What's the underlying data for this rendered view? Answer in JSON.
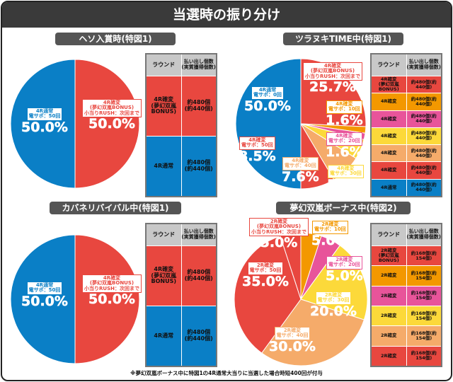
{
  "title": "当選時の振り分け",
  "colors": {
    "red": "#e8473f",
    "blue": "#0a7fc6",
    "orange": "#f39800",
    "pink": "#e8549a",
    "yellow": "#fcd93a",
    "salmon": "#f5ab6a"
  },
  "table_header": {
    "round": "ラウンド",
    "payout": "払い出し個数\n(実質獲得個数)"
  },
  "panels": [
    {
      "title": "ヘソ入賞時(特図1)",
      "slices": [
        {
          "label": "4R確変\n(夢幻双嵐BONUS)\n小当りRUSH：次回まで",
          "pct": "50.0%",
          "value": 50.0,
          "color": "red"
        },
        {
          "label": "4R通常\n電サポ：50回",
          "pct": "50.0%",
          "value": 50.0,
          "color": "blue"
        }
      ],
      "rows": [
        {
          "round": "4R確変\n(夢幻双嵐BONUS)",
          "payout": "約480個\n(約440個)",
          "color": "red"
        },
        {
          "round": "4R通常",
          "payout": "約480個\n(約440個)",
          "color": "blue"
        }
      ]
    },
    {
      "title": "ツラヌキTIME中(特図1)",
      "slices": [
        {
          "label": "4R確変\n(夢幻双嵐BONUS)\n小当りRUSH：次回まで",
          "pct": "25.7%",
          "value": 25.7,
          "color": "red"
        },
        {
          "label": "4R確変\n電サポ：10回",
          "pct": "1.6%",
          "value": 1.6,
          "color": "orange"
        },
        {
          "label": "4R確変\n電サポ：20回",
          "pct": "1.6%",
          "value": 1.6,
          "color": "pink"
        },
        {
          "label": "4R確変\n電サポ：30回",
          "pct": "5.0%",
          "value": 5.0,
          "color": "yellow"
        },
        {
          "label": "4R確変\n電サポ：40回",
          "pct": "7.6%",
          "value": 7.6,
          "color": "salmon"
        },
        {
          "label": "4R確変\n電サポ：50回",
          "pct": "8.5%",
          "value": 8.5,
          "color": "red"
        },
        {
          "label": "4R通常\n電サポ：0回",
          "pct": "50.0%",
          "value": 50.0,
          "color": "blue"
        }
      ],
      "rows": [
        {
          "round": "4R確変\n(夢幻双嵐BONUS)",
          "payout": "約480個(約440個)",
          "color": "red"
        },
        {
          "round": "4R確変",
          "payout": "約480個(約440個)",
          "color": "orange"
        },
        {
          "round": "4R確変",
          "payout": "約480個(約440個)",
          "color": "pink"
        },
        {
          "round": "4R確変",
          "payout": "約480個(約440個)",
          "color": "yellow"
        },
        {
          "round": "4R確変",
          "payout": "約480個(約440個)",
          "color": "salmon"
        },
        {
          "round": "4R確変",
          "payout": "約480個(約440個)",
          "color": "red"
        },
        {
          "round": "4R通常",
          "payout": "約480個(約440個)",
          "color": "blue"
        }
      ]
    },
    {
      "title": "カバネリバイバル中(特図1)",
      "slices": [
        {
          "label": "4R確変\n(夢幻双嵐BONUS)\n小当りRUSH：次回まで",
          "pct": "50.0%",
          "value": 50.0,
          "color": "red"
        },
        {
          "label": "4R通常\n電サポ：50回",
          "pct": "50.0%",
          "value": 50.0,
          "color": "blue"
        }
      ],
      "rows": [
        {
          "round": "4R確変\n(夢幻双嵐BONUS)",
          "payout": "約480個\n(約440個)",
          "color": "red"
        },
        {
          "round": "4R通常",
          "payout": "約480個\n(約440個)",
          "color": "blue"
        }
      ]
    },
    {
      "title": "夢幻双嵐ボーナス中(特図2)",
      "slices": [
        {
          "label": "2R確変\n電サポ：10回",
          "pct": "5.0%",
          "value": 5.0,
          "color": "orange"
        },
        {
          "label": "2R確変\n電サポ：20回",
          "pct": "5.0%",
          "value": 5.0,
          "color": "pink"
        },
        {
          "label": "2R確変\n電サポ：30回",
          "pct": "20.0%",
          "value": 20.0,
          "color": "yellow"
        },
        {
          "label": "2R確変\n電サポ：40回",
          "pct": "30.0%",
          "value": 30.0,
          "color": "salmon"
        },
        {
          "label": "2R確変\n電サポ：50回",
          "pct": "35.0%",
          "value": 35.0,
          "color": "red"
        },
        {
          "label": "2R確変\n(夢幻双嵐BONUS)\n小当りRUSH：次回まで",
          "pct": "5.0%",
          "value": 5.0,
          "color": "red"
        }
      ],
      "rows": [
        {
          "round": "2R確変\n(夢幻双嵐BONUS)",
          "payout": "約168個(約154個)",
          "color": "red"
        },
        {
          "round": "2R確変",
          "payout": "約168個(約154個)",
          "color": "orange"
        },
        {
          "round": "2R確変",
          "payout": "約168個(約154個)",
          "color": "pink"
        },
        {
          "round": "2R確変",
          "payout": "約168個(約154個)",
          "color": "yellow"
        },
        {
          "round": "2R確変",
          "payout": "約168個(約154個)",
          "color": "salmon"
        },
        {
          "round": "2R確変",
          "payout": "約168個(約154個)",
          "color": "red"
        }
      ]
    }
  ],
  "footnote": "※夢幻双嵐ボーナス中に特図1の4R通常大当りに当選した場合時短400回が付与"
}
